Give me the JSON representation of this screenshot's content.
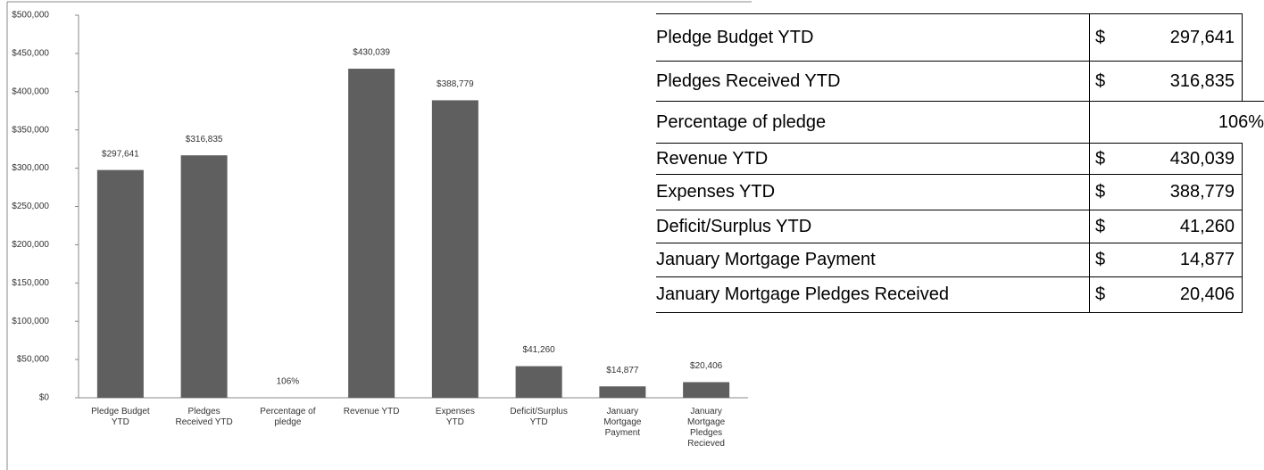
{
  "chart_data": {
    "type": "bar",
    "categories": [
      "Pledge Budget YTD",
      "Pledges Received YTD",
      "Percentage of pledge",
      "Revenue YTD",
      "Expenses YTD",
      "Deficit/Surplus YTD",
      "January Mortgage Payment",
      "January Mortgage Pledges Recieved"
    ],
    "values": [
      297641,
      316835,
      1.06,
      430039,
      388779,
      41260,
      14877,
      20406
    ],
    "value_labels": [
      "$297,641",
      "$316,835",
      "106%",
      "$430,039",
      "$388,779",
      "$41,260",
      "$14,877",
      "$20,406"
    ],
    "color": "#5f5f5f",
    "ylim": [
      0,
      500000
    ],
    "yticks": [
      {
        "value": 0,
        "label": "$0"
      },
      {
        "value": 50000,
        "label": "$50,000"
      },
      {
        "value": 100000,
        "label": "$100,000"
      },
      {
        "value": 150000,
        "label": "$150,000"
      },
      {
        "value": 200000,
        "label": "$200,000"
      },
      {
        "value": 250000,
        "label": "$250,000"
      },
      {
        "value": 300000,
        "label": "$300,000"
      },
      {
        "value": 350000,
        "label": "$350,000"
      },
      {
        "value": 400000,
        "label": "$400,000"
      },
      {
        "value": 450000,
        "label": "$450,000"
      },
      {
        "value": 500000,
        "label": "$500,000"
      }
    ],
    "grid": false
  },
  "table": {
    "rows": [
      {
        "label": "Pledge Budget YTD",
        "currency": "$",
        "amount": "297,641"
      },
      {
        "label": "Pledges Received YTD",
        "currency": "$",
        "amount": "316,835"
      },
      {
        "label": "Percentage of pledge",
        "amount": "106%"
      },
      {
        "label": "Revenue YTD",
        "currency": "$",
        "amount": "430,039"
      },
      {
        "label": "Expenses YTD",
        "currency": "$",
        "amount": "388,779"
      },
      {
        "label": "Deficit/Surplus YTD",
        "currency": "$",
        "amount": "41,260"
      },
      {
        "label": "January Mortgage Payment",
        "currency": "$",
        "amount": "14,877"
      },
      {
        "label": "January Mortgage Pledges Received",
        "currency": "$",
        "amount": "20,406"
      }
    ]
  }
}
